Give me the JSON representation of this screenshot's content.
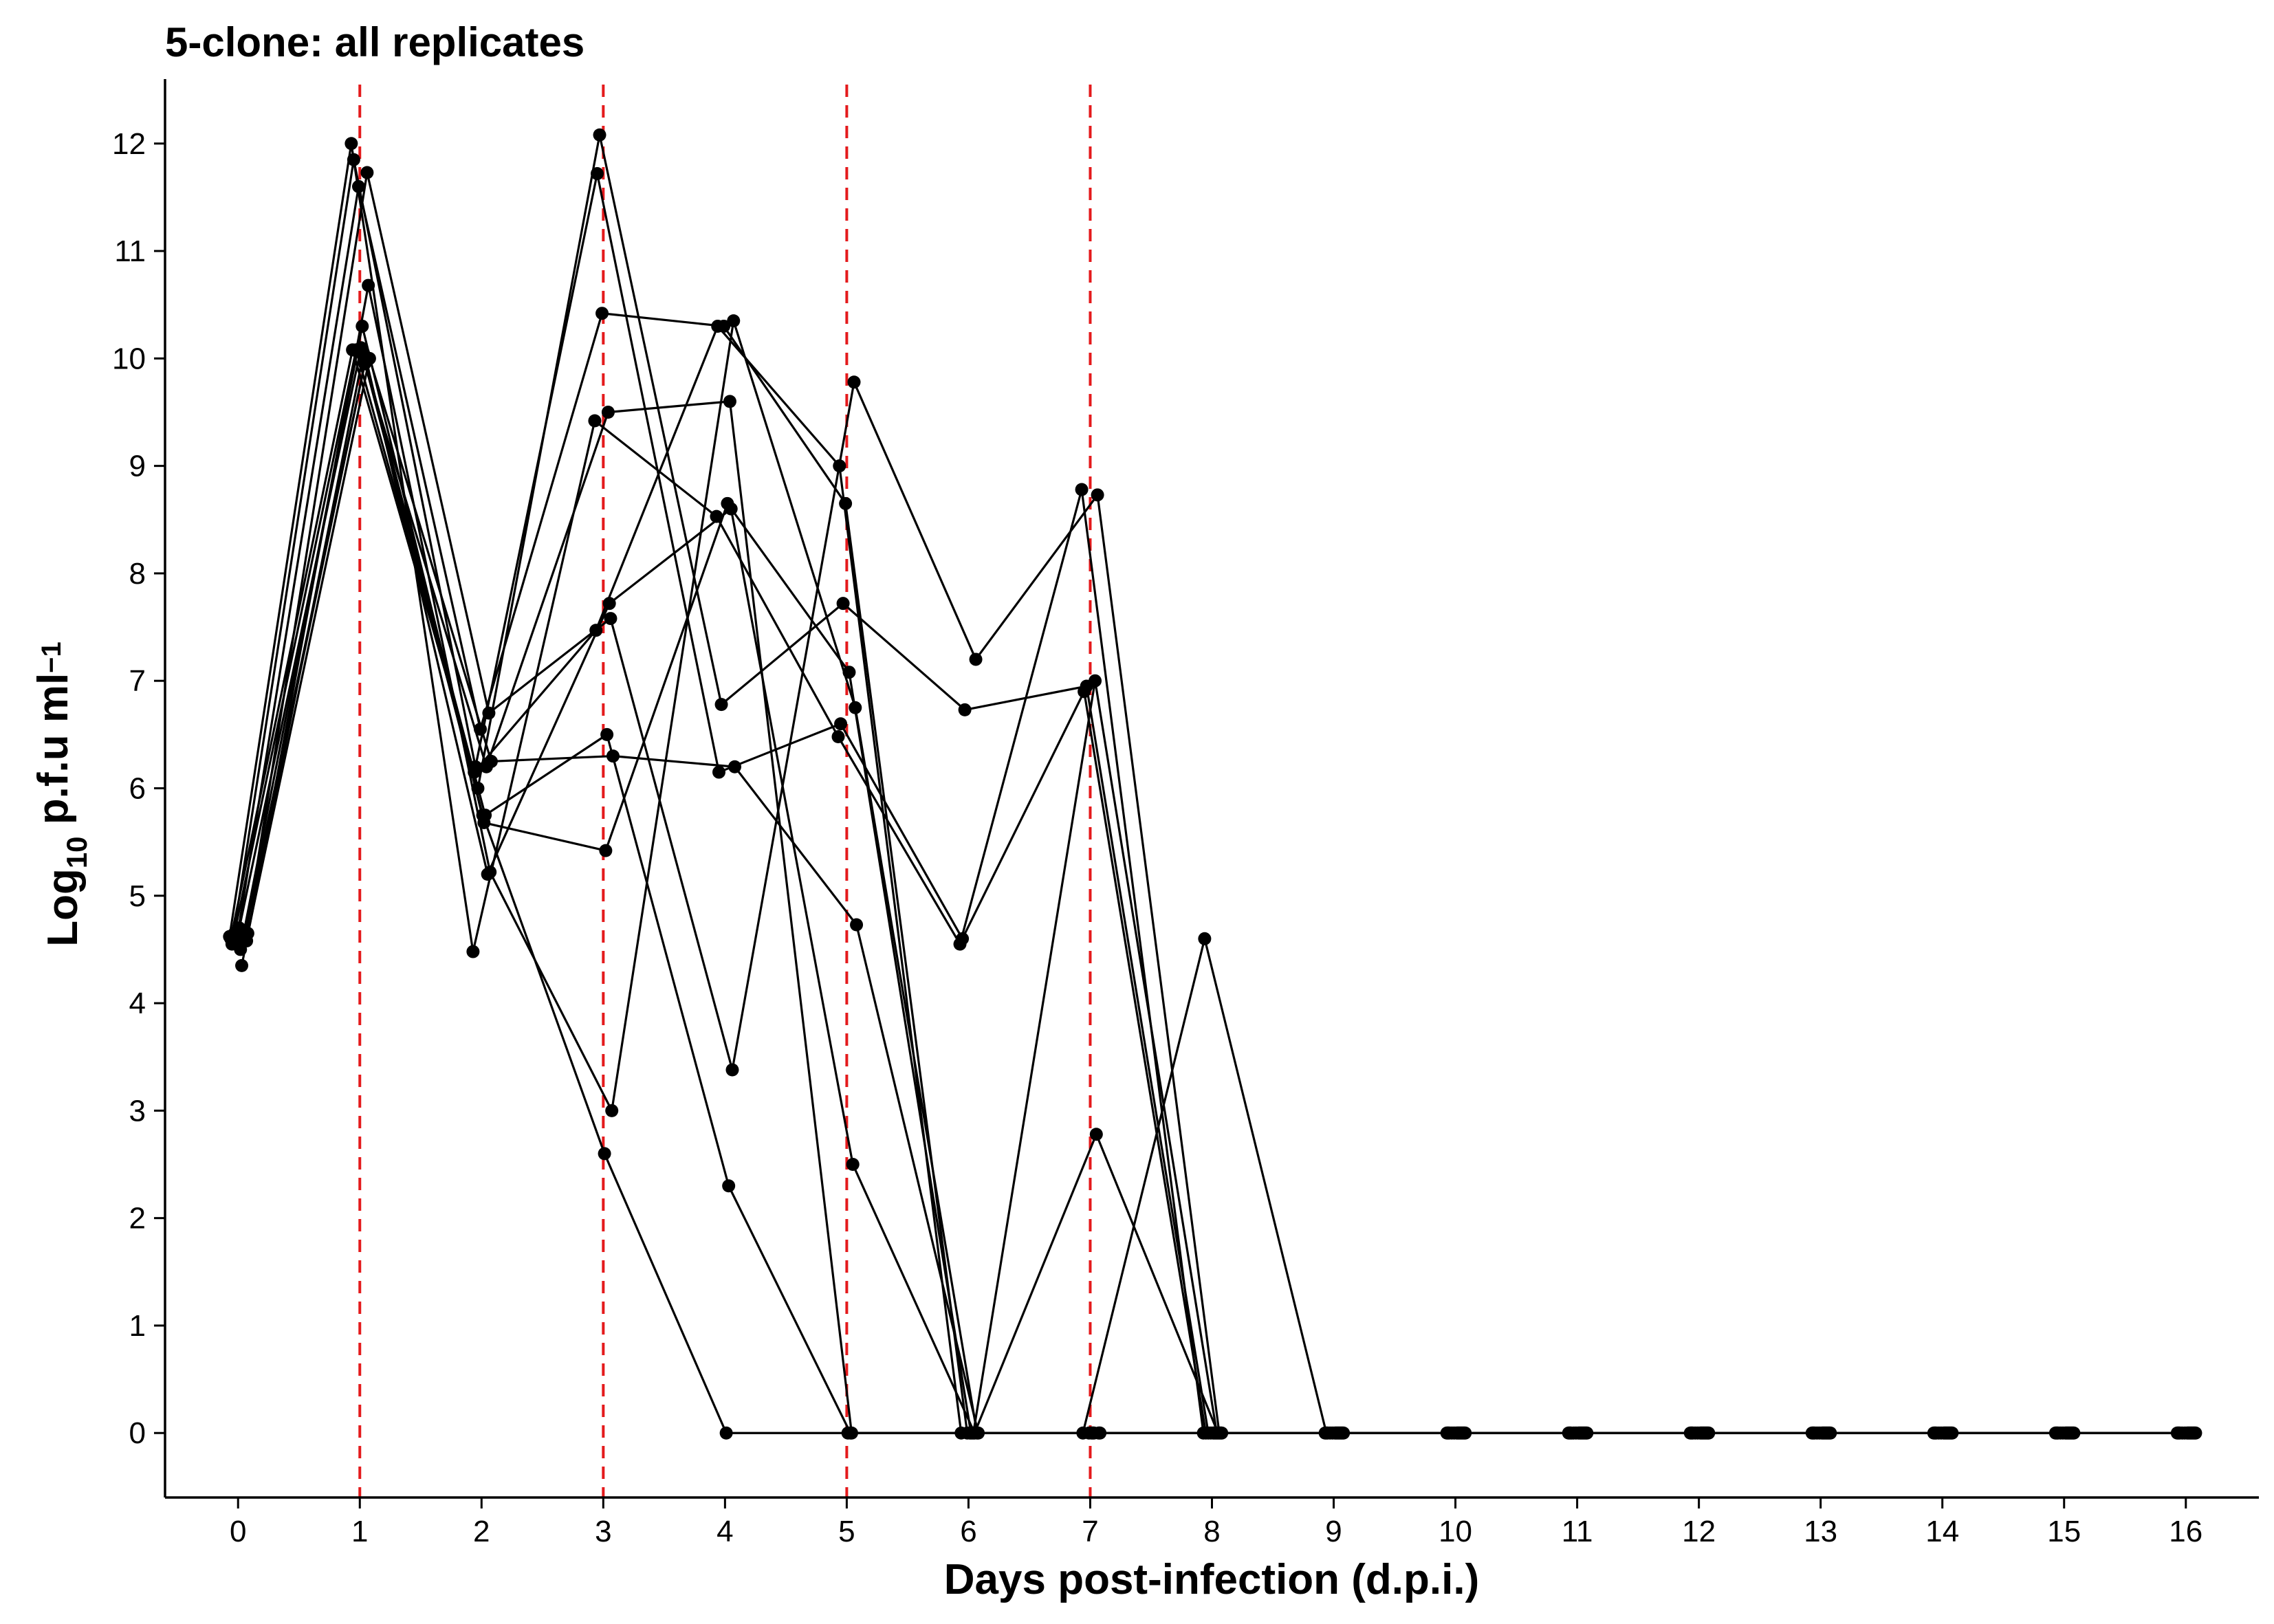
{
  "chart_data": {
    "type": "line",
    "title": "5-clone: all replicates",
    "xlabel": "Days post-infection (d.p.i.)",
    "ylabel": {
      "prefix": "Log",
      "sub": "10",
      "mid": " p.f.u ml",
      "sup": "−1"
    },
    "xlim": [
      -0.6,
      16.6
    ],
    "ylim": [
      -0.6,
      12.6
    ],
    "x_ticks": [
      0,
      1,
      2,
      3,
      4,
      5,
      6,
      7,
      8,
      9,
      10,
      11,
      12,
      13,
      14,
      15,
      16
    ],
    "y_ticks": [
      0,
      1,
      2,
      3,
      4,
      5,
      6,
      7,
      8,
      9,
      10,
      11,
      12
    ],
    "grid": false,
    "legend": "none",
    "vlines": [
      1,
      3,
      5,
      7
    ],
    "colors": {
      "series": "#000000",
      "vline": "#e41a1c",
      "axis": "#000000"
    },
    "series": [
      {
        "x": [
          -0.07,
          0.93,
          1.93,
          2.93,
          3.93,
          4.93,
          5.93,
          6.93,
          7.93,
          8.93,
          9.93,
          10.93,
          11.93,
          12.93,
          13.93,
          14.93,
          15.93
        ],
        "y": [
          4.62,
          12.0,
          4.48,
          9.42,
          8.53,
          6.48,
          4.55,
          8.78,
          0,
          0,
          0,
          0,
          0,
          0,
          0,
          0,
          0
        ]
      },
      {
        "x": [
          -0.05,
          0.95,
          1.95,
          2.95,
          3.95,
          4.95,
          5.95,
          6.95,
          7.95,
          8.95,
          9.95,
          10.95,
          11.95,
          12.95,
          13.95,
          14.95,
          15.95
        ],
        "y": [
          4.55,
          11.85,
          6.2,
          11.72,
          6.15,
          6.6,
          4.6,
          6.9,
          0,
          0,
          0,
          0,
          0,
          0,
          0,
          0,
          0
        ]
      },
      {
        "x": [
          -0.03,
          0.97,
          1.97,
          2.97,
          3.97,
          4.97,
          5.97,
          6.97,
          7.97,
          8.97,
          9.97,
          10.97,
          11.97,
          12.97,
          13.97,
          14.97,
          15.97
        ],
        "y": [
          4.65,
          10.08,
          6.0,
          12.08,
          6.78,
          7.72,
          6.73,
          6.95,
          0,
          0,
          0,
          0,
          0,
          0,
          0,
          0,
          0
        ]
      },
      {
        "x": [
          -0.01,
          0.99,
          1.99,
          2.99,
          3.99,
          4.99,
          5.99,
          6.99,
          7.99,
          8.99,
          9.99,
          10.99,
          11.99,
          12.99,
          13.99,
          14.99,
          15.99
        ],
        "y": [
          4.6,
          11.6,
          6.55,
          10.42,
          10.3,
          8.65,
          0,
          0,
          0,
          0,
          0,
          0,
          0,
          0,
          0,
          0,
          0
        ]
      },
      {
        "x": [
          0.01,
          1.01,
          2.01,
          3.01,
          4.01,
          5.01,
          6.01,
          7.01,
          8.01,
          9.01,
          10.01,
          11.01,
          12.01,
          13.01,
          14.01,
          15.01,
          16.01
        ],
        "y": [
          4.7,
          10.1,
          5.75,
          2.6,
          0,
          0,
          0,
          0,
          0,
          0,
          0,
          0,
          0,
          0,
          0,
          0,
          0
        ]
      },
      {
        "x": [
          -0.06,
          0.94,
          1.94,
          2.94,
          3.94,
          4.94,
          5.94,
          6.94,
          7.94,
          8.94,
          9.94,
          10.94,
          11.94,
          12.94,
          13.94,
          14.94,
          15.94
        ],
        "y": [
          4.6,
          10.08,
          6.15,
          7.47,
          10.3,
          9.0,
          0,
          0,
          4.6,
          0,
          0,
          0,
          0,
          0,
          0,
          0,
          0
        ]
      },
      {
        "x": [
          0.02,
          1.02,
          2.02,
          3.02,
          4.02,
          5.02,
          6.02,
          7.02,
          8.02,
          9.02,
          10.02,
          11.02,
          12.02,
          13.02,
          14.02,
          15.02,
          16.02
        ],
        "y": [
          4.5,
          10.3,
          5.68,
          5.42,
          8.65,
          7.08,
          0,
          0,
          0,
          0,
          0,
          0,
          0,
          0,
          0,
          0,
          0
        ]
      },
      {
        "x": [
          0.03,
          1.03,
          2.03,
          3.03,
          4.03,
          5.03,
          6.03,
          7.03,
          8.03,
          9.03,
          10.03,
          11.03,
          12.03,
          13.03,
          14.03,
          15.03,
          16.03
        ],
        "y": [
          4.35,
          10.05,
          5.75,
          6.5,
          2.3,
          0,
          0,
          0,
          0,
          0,
          0,
          0,
          0,
          0,
          0,
          0,
          0
        ]
      },
      {
        "x": [
          0.04,
          1.04,
          2.04,
          3.04,
          4.04,
          5.04,
          6.04,
          7.04,
          8.04,
          9.04,
          10.04,
          11.04,
          12.04,
          13.04,
          14.04,
          15.04,
          16.04
        ],
        "y": [
          4.6,
          9.95,
          6.2,
          9.5,
          9.6,
          0,
          0,
          7.0,
          0,
          0,
          0,
          0,
          0,
          0,
          0,
          0,
          0
        ]
      },
      {
        "x": [
          0.05,
          1.05,
          2.05,
          3.05,
          4.05,
          5.05,
          6.05,
          7.05,
          8.05,
          9.05,
          10.05,
          11.05,
          12.05,
          13.05,
          14.05,
          15.05,
          16.05
        ],
        "y": [
          4.6,
          10.0,
          5.2,
          7.72,
          8.6,
          2.5,
          0,
          2.78,
          0,
          0,
          0,
          0,
          0,
          0,
          0,
          0,
          0
        ]
      },
      {
        "x": [
          0.06,
          1.06,
          2.06,
          3.06,
          4.06,
          5.06,
          6.06,
          7.06,
          8.06,
          9.06,
          10.06,
          11.06,
          12.06,
          13.06,
          14.06,
          15.06,
          16.06
        ],
        "y": [
          4.6,
          11.73,
          6.7,
          7.58,
          3.38,
          9.78,
          7.2,
          8.73,
          0,
          0,
          0,
          0,
          0,
          0,
          0,
          0,
          0
        ]
      },
      {
        "x": [
          0.07,
          1.07,
          2.07,
          3.07,
          4.07,
          5.07,
          6.07,
          7.07,
          8.07,
          9.07,
          10.07,
          11.07,
          12.07,
          13.07,
          14.07,
          15.07,
          16.07
        ],
        "y": [
          4.58,
          10.68,
          5.22,
          3.0,
          10.35,
          6.75,
          0,
          0,
          0,
          0,
          0,
          0,
          0,
          0,
          0,
          0,
          0
        ]
      },
      {
        "x": [
          0.08,
          1.08,
          2.08,
          3.08,
          4.08,
          5.08,
          6.08,
          7.08,
          8.08,
          9.08,
          10.08,
          11.08,
          12.08,
          13.08,
          14.08,
          15.08,
          16.08
        ],
        "y": [
          4.65,
          10.0,
          6.25,
          6.3,
          6.2,
          4.73,
          0,
          0,
          0,
          0,
          0,
          0,
          0,
          0,
          0,
          0,
          0
        ]
      }
    ]
  }
}
